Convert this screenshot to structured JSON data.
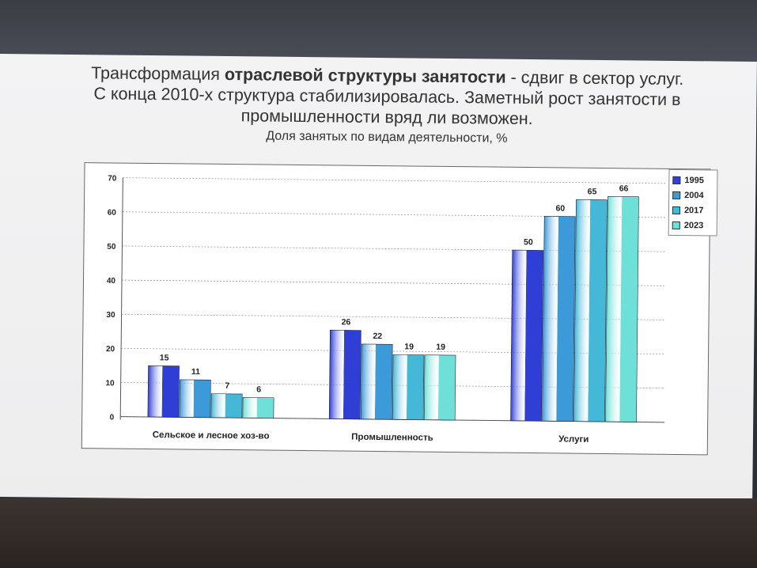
{
  "slide": {
    "title_plain_1": "Трансформация ",
    "title_bold": "отраслевой структуры занятости",
    "title_plain_2": " - сдвиг в сектор услуг. С конца 2010-х структура стабилизировалась. Заметный рост занятости в промышленности вряд ли возможен.",
    "subtitle": "Доля занятых по видам деятельности, %"
  },
  "chart_data": {
    "type": "bar",
    "title": "Доля занятых по видам деятельности, %",
    "categories": [
      "Сельское и лесное хоз-во",
      "Промышленность",
      "Услуги"
    ],
    "series": [
      {
        "name": "1995",
        "values": [
          15,
          26,
          50
        ],
        "color": "#2f3fd6"
      },
      {
        "name": "2004",
        "values": [
          11,
          22,
          60
        ],
        "color": "#3d9ad8"
      },
      {
        "name": "2017",
        "values": [
          7,
          19,
          65
        ],
        "color": "#45b8d8"
      },
      {
        "name": "2023",
        "values": [
          6,
          19,
          66
        ],
        "color": "#6fe0d8"
      }
    ],
    "ylim": [
      0,
      70
    ],
    "yticks": [
      0,
      10,
      20,
      30,
      40,
      50,
      60,
      70
    ],
    "grid": true,
    "legend": "top-right"
  }
}
